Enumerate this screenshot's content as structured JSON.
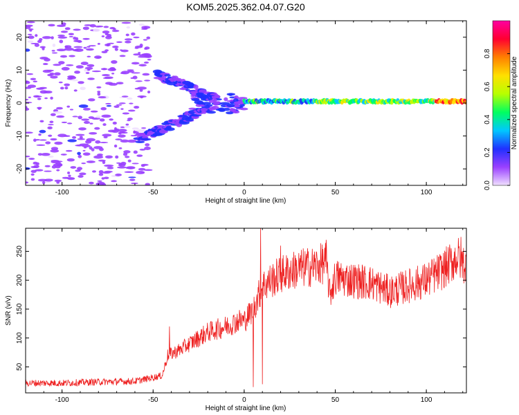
{
  "title": "KOM5.2025.362.04.07.G20",
  "chart_data": [
    {
      "type": "heatmap",
      "name": "spectrogram",
      "xlabel": "Height of straight line (km)",
      "ylabel": "Frequency (Hz)",
      "xlim": [
        -120,
        122
      ],
      "ylim": [
        -25,
        25
      ],
      "xticks": [
        -100,
        -50,
        0,
        50,
        100
      ],
      "yticks": [
        -20,
        -10,
        0,
        10,
        20
      ],
      "colorbar": {
        "label": "Normalized spectral amplitude",
        "range": [
          0.0,
          1.0
        ],
        "ticks": [
          0.0,
          0.2,
          0.4,
          0.6,
          0.8
        ],
        "tick_labels": [
          "0.0",
          "0.2",
          "0.4",
          "0.6",
          "0.8"
        ],
        "colors": [
          "#f0e0ff",
          "#9a40ff",
          "#2030ff",
          "#00c8ff",
          "#00ff60",
          "#b8ff00",
          "#ffe000",
          "#ff8000",
          "#ff0030",
          "#ff00a0"
        ]
      },
      "features": [
        {
          "label": "main echo trace",
          "x_range": [
            0,
            122
          ],
          "frequency": 0.5,
          "amplitude": 0.5
        },
        {
          "label": "upper branch",
          "x_range": [
            -48,
            -15
          ],
          "frequency_range": [
            9,
            1
          ],
          "amplitude": 0.15
        },
        {
          "label": "lower branch",
          "x_range": [
            -58,
            -22
          ],
          "frequency_range": [
            -11,
            -2
          ],
          "amplitude": 0.15
        }
      ]
    },
    {
      "type": "line",
      "name": "snr",
      "xlabel": "Height of straight line (km)",
      "ylabel": "SNR (v/v)",
      "xlim": [
        -120,
        122
      ],
      "ylim": [
        5,
        290
      ],
      "xticks": [
        -100,
        -50,
        0,
        50,
        100
      ],
      "yticks": [
        50,
        100,
        150,
        200,
        250
      ],
      "color": "#ee2020",
      "trend": [
        {
          "x": -120,
          "y": 22
        },
        {
          "x": -100,
          "y": 22
        },
        {
          "x": -80,
          "y": 24
        },
        {
          "x": -60,
          "y": 25
        },
        {
          "x": -45,
          "y": 35
        },
        {
          "x": -42,
          "y": 70
        },
        {
          "x": -35,
          "y": 80
        },
        {
          "x": -30,
          "y": 90
        },
        {
          "x": -25,
          "y": 100
        },
        {
          "x": -20,
          "y": 110
        },
        {
          "x": -10,
          "y": 120
        },
        {
          "x": -3,
          "y": 130
        },
        {
          "x": 0,
          "y": 130
        },
        {
          "x": 5,
          "y": 150
        },
        {
          "x": 10,
          "y": 190
        },
        {
          "x": 20,
          "y": 210
        },
        {
          "x": 30,
          "y": 220
        },
        {
          "x": 40,
          "y": 225
        },
        {
          "x": 45,
          "y": 232
        },
        {
          "x": 47,
          "y": 175
        },
        {
          "x": 50,
          "y": 205
        },
        {
          "x": 60,
          "y": 200
        },
        {
          "x": 70,
          "y": 195
        },
        {
          "x": 80,
          "y": 180
        },
        {
          "x": 90,
          "y": 190
        },
        {
          "x": 100,
          "y": 200
        },
        {
          "x": 110,
          "y": 220
        },
        {
          "x": 117,
          "y": 240
        },
        {
          "x": 122,
          "y": 225
        }
      ],
      "spikes": [
        {
          "x": -41,
          "y": 120
        },
        {
          "x": 9,
          "y": 290
        },
        {
          "x": 5,
          "y": 15
        },
        {
          "x": 10,
          "y": 20
        },
        {
          "x": 20,
          "y": 260
        },
        {
          "x": 45,
          "y": 270
        },
        {
          "x": 119,
          "y": 275
        }
      ]
    }
  ]
}
